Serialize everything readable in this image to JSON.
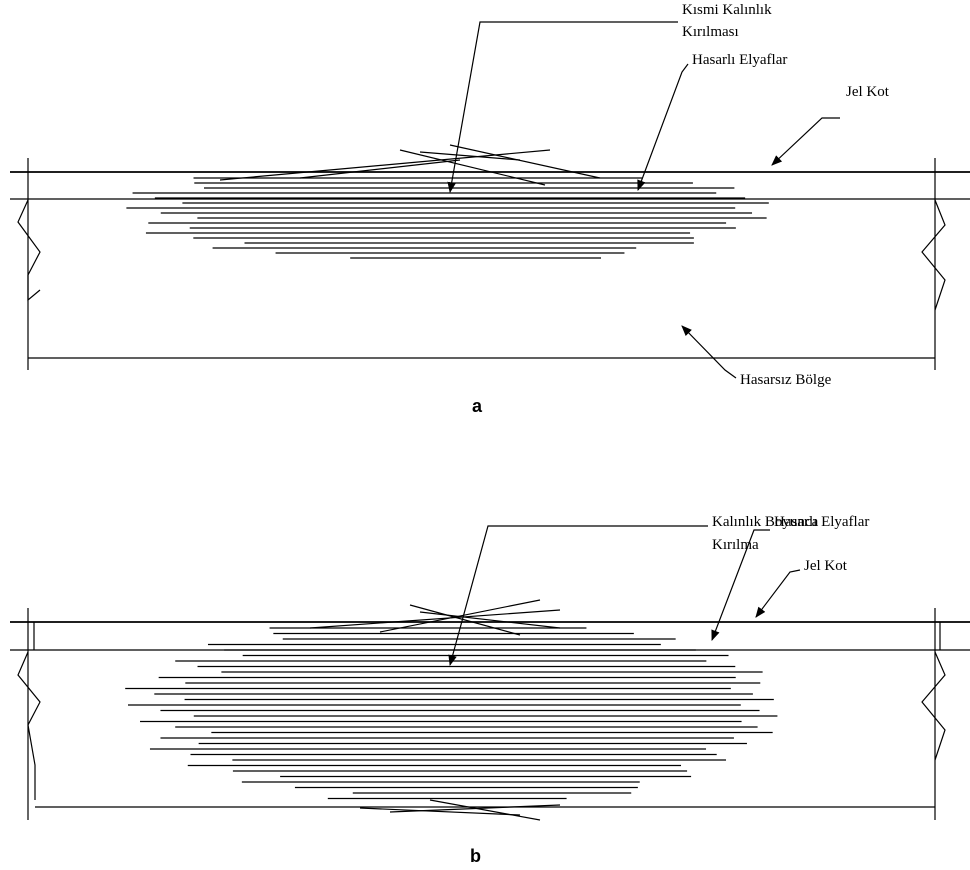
{
  "panels": [
    {
      "label": "a",
      "crack": [
        "Kısmi Kalınlık",
        "Kırılması"
      ],
      "fibers": "Hasarlı Elyaflar",
      "gelcoat": "Jel Kot",
      "undamaged": "Hasarsız Bölge"
    },
    {
      "label": "b",
      "crack": [
        "Kalınlık Boyunca",
        "Kırılma"
      ],
      "fibers": "Hasarlı Elyaflar",
      "gelcoat": "Jel Kot"
    }
  ]
}
